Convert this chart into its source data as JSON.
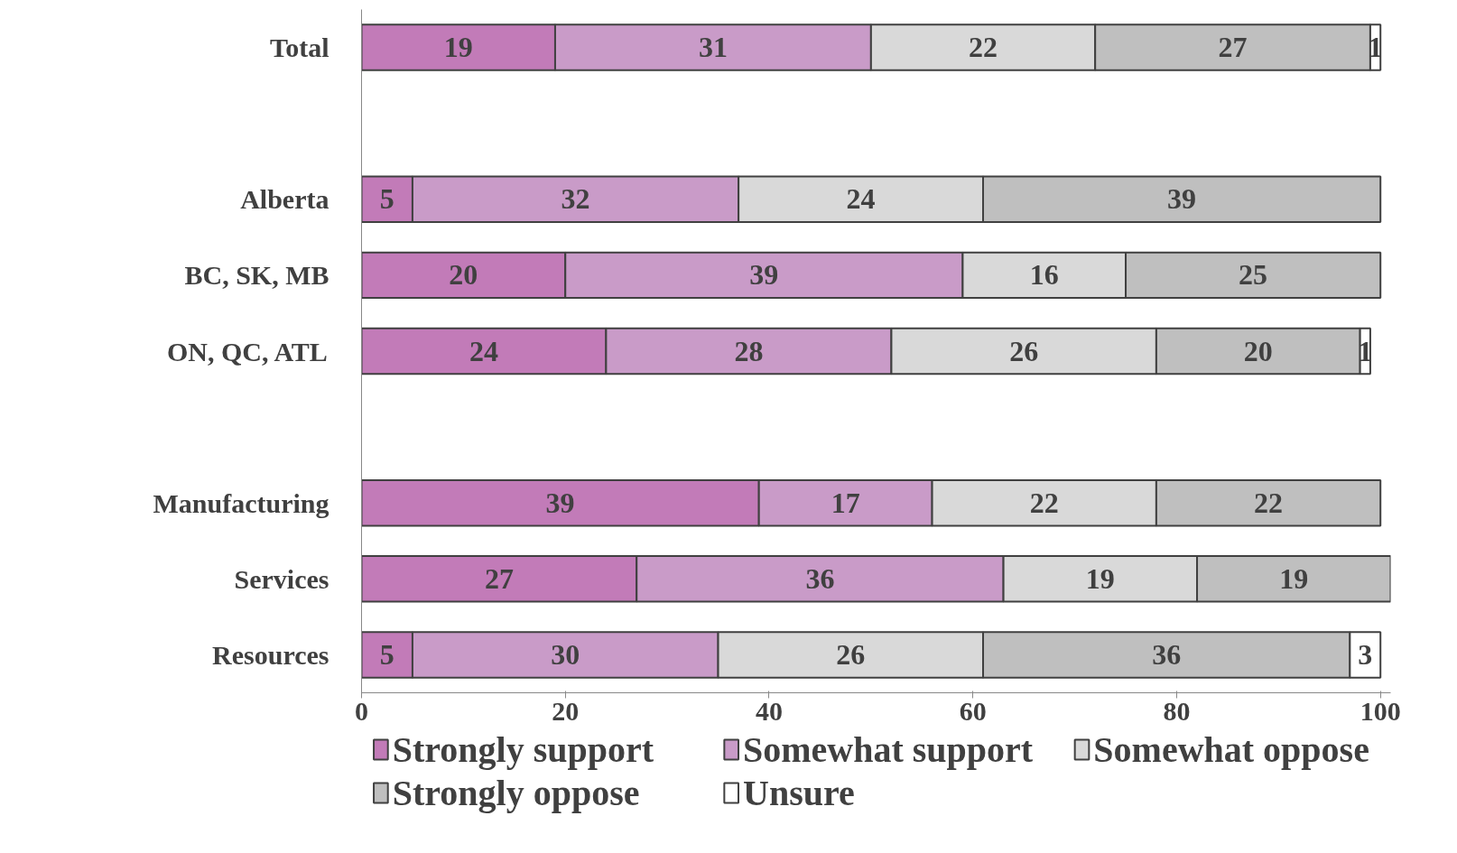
{
  "chart_data": {
    "type": "bar",
    "orientation": "horizontal",
    "stacked": true,
    "data_labels": true,
    "grid": false,
    "legend": "bottom",
    "categories": [
      "Total",
      null,
      "Alberta",
      "BC, SK, MB",
      "ON, QC, ATL",
      null,
      "Manufacturing",
      "Services",
      "Resources"
    ],
    "xlim": [
      0,
      101
    ],
    "xticks": [
      0,
      20,
      40,
      60,
      80,
      100
    ],
    "series": [
      {
        "name": "Strongly support",
        "color": "#c27bb8",
        "values": [
          19,
          null,
          5,
          20,
          24,
          null,
          39,
          27,
          5
        ]
      },
      {
        "name": "Somewhat support",
        "color": "#c99bc8",
        "values": [
          31,
          null,
          32,
          39,
          28,
          null,
          17,
          36,
          30
        ]
      },
      {
        "name": "Somewhat oppose",
        "color": "#d9d9d9",
        "values": [
          22,
          null,
          24,
          16,
          26,
          null,
          22,
          19,
          26
        ]
      },
      {
        "name": "Strongly oppose",
        "color": "#bfbfbf",
        "values": [
          27,
          null,
          39,
          25,
          20,
          null,
          22,
          19,
          36
        ]
      },
      {
        "name": "Unsure",
        "color": "#ffffff",
        "values": [
          1,
          null,
          null,
          null,
          1,
          null,
          null,
          null,
          3
        ]
      }
    ]
  }
}
